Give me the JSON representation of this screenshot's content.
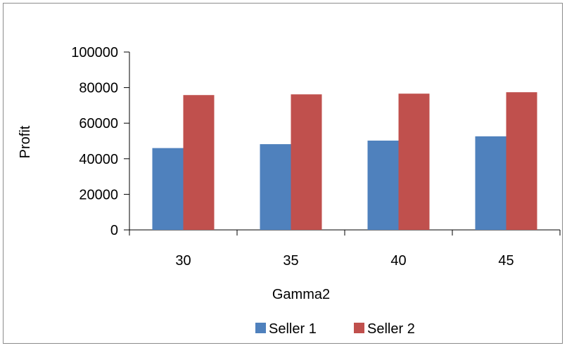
{
  "chart_data": {
    "type": "bar",
    "title": "",
    "xlabel": "Gamma2",
    "ylabel": "Profit",
    "categories": [
      "30",
      "35",
      "40",
      "45"
    ],
    "series": [
      {
        "name": "Seller 1",
        "color": "#4f81bd",
        "values": [
          46000,
          48200,
          50200,
          52600
        ]
      },
      {
        "name": "Seller 2",
        "color": "#c0504d",
        "values": [
          75800,
          76200,
          76600,
          77400
        ]
      }
    ],
    "ylim": [
      0,
      100000
    ],
    "yticks": [
      "0",
      "20000",
      "40000",
      "60000",
      "80000",
      "100000"
    ],
    "grid": false,
    "legend_position": "bottom"
  }
}
